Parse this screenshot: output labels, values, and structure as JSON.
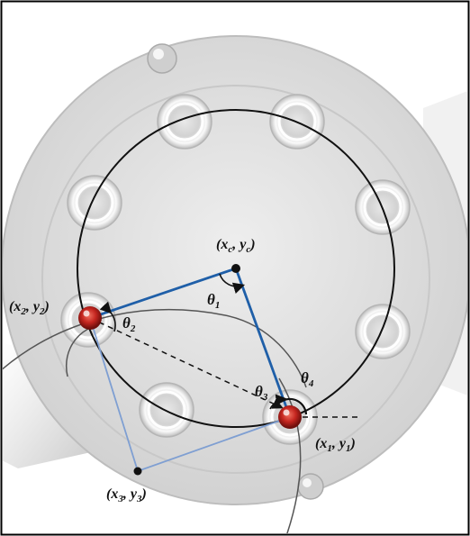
{
  "colors": {
    "background": "#ffffff",
    "border": "#000000",
    "plate": "#d8d8d8",
    "inner_ring": "#dcdcdc",
    "bolt_circle": "#111111",
    "blue_line": "#1f5fa8",
    "light_blue_line": "#7f9fd2",
    "marker_red": "#c4251f",
    "gray_arc": "#555555"
  },
  "labels": {
    "center": "(x",
    "center_sub": "c",
    "center_mid": ", y",
    "center_sub2": "c",
    "center_end": ")",
    "p1": "(x",
    "p1_sub": "1",
    "p1_mid": ", y",
    "p1_sub2": "1",
    "p1_end": ")",
    "p2": "(x",
    "p2_sub": "2",
    "p2_mid": ", y",
    "p2_sub2": "2",
    "p2_end": ")",
    "p3": "(x",
    "p3_sub": "3",
    "p3_mid": ", y",
    "p3_sub2": "3",
    "p3_end": ")",
    "theta1": "θ",
    "theta1_sub": "1",
    "theta2": "θ",
    "theta2_sub": "2",
    "theta3": "θ",
    "theta3_sub": "3",
    "theta4": "θ",
    "theta4_sub": "4"
  }
}
